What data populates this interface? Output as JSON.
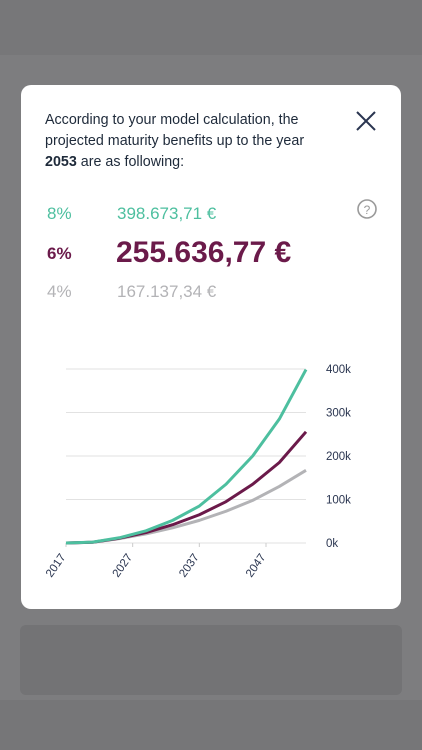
{
  "modal": {
    "intro": "According to your model calculation, the projected maturity benefits up to the year",
    "year": "2053",
    "intro_end": "are as following:",
    "rows": [
      {
        "rate": "8%",
        "amount": "398.673,71 €"
      },
      {
        "rate": "6%",
        "amount": "255.636,77 €"
      },
      {
        "rate": "4%",
        "amount": "167.137,34 €"
      }
    ]
  },
  "chart_data": {
    "type": "line",
    "x": [
      2017,
      2021,
      2025,
      2029,
      2033,
      2037,
      2041,
      2045,
      2049,
      2053
    ],
    "series": [
      {
        "color": "#4dbf9f",
        "values": [
          0,
          2000,
          12000,
          28000,
          52000,
          85000,
          135000,
          200000,
          285000,
          398673.71
        ]
      },
      {
        "color": "#6b1a4a",
        "values": [
          0,
          1800,
          11000,
          24000,
          42000,
          65000,
          95000,
          135000,
          185000,
          255636.77
        ]
      },
      {
        "color": "#b3b3b6",
        "values": [
          0,
          1700,
          10000,
          21000,
          35000,
          52000,
          73000,
          98000,
          130000,
          167137.34
        ]
      }
    ],
    "xlim": [
      2017,
      2053
    ],
    "xticks": [
      2017,
      2027,
      2037,
      2047
    ],
    "ylim": [
      0,
      400000
    ],
    "yticks": [
      {
        "value": 0,
        "label": "0k"
      },
      {
        "value": 100000,
        "label": "100k"
      },
      {
        "value": 200000,
        "label": "200k"
      },
      {
        "value": 300000,
        "label": "300k"
      },
      {
        "value": 400000,
        "label": "400k"
      }
    ],
    "grid": true
  }
}
